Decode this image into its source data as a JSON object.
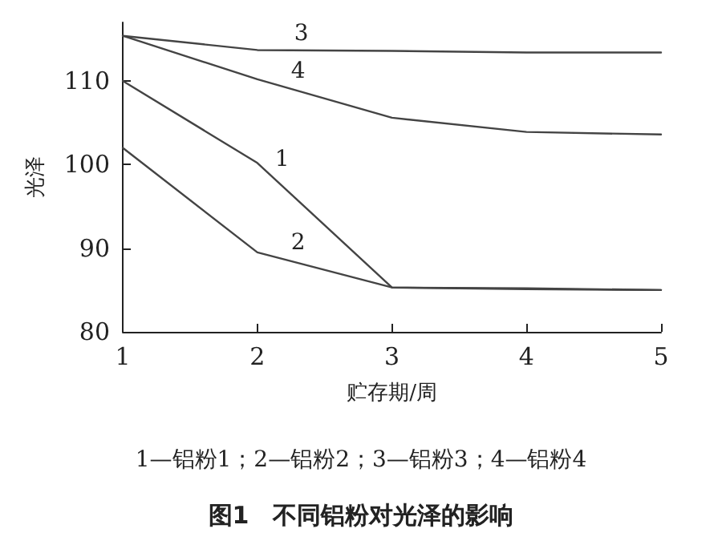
{
  "chart_data": {
    "type": "line",
    "title": "图1　不同铝粉对光泽的影响",
    "xlabel": "贮存期/周",
    "ylabel": "光泽",
    "annotations": [
      "1—铝粉1；2—铝粉2；3—铝粉3；4—铝粉4"
    ],
    "x": [
      1,
      2,
      3,
      4,
      5
    ],
    "xlim": [
      1,
      5
    ],
    "xticks": [
      1,
      2,
      3,
      4,
      5
    ],
    "ylim": [
      80,
      117
    ],
    "yticks": [
      80,
      90,
      100,
      110
    ],
    "grid": false,
    "legend": false,
    "line_style": "solid",
    "series": [
      {
        "name": "1",
        "color": "#444444",
        "values": [
          110,
          100.2,
          85.3,
          85.2,
          85
        ]
      },
      {
        "name": "2",
        "color": "#444444",
        "values": [
          102,
          89.5,
          85.3,
          85.1,
          85
        ]
      },
      {
        "name": "3",
        "color": "#444444",
        "values": [
          115.4,
          113.7,
          113.6,
          113.4,
          113.4
        ]
      },
      {
        "name": "4",
        "color": "#444444",
        "values": [
          115.4,
          110.2,
          105.6,
          103.9,
          103.6
        ]
      }
    ]
  }
}
